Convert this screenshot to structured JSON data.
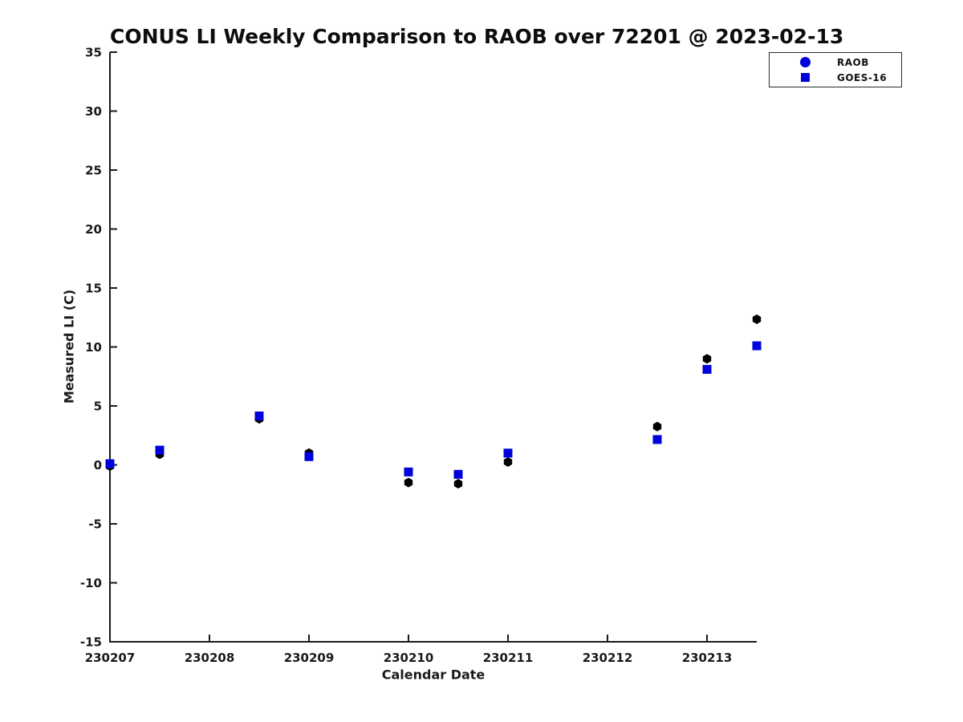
{
  "title": "CONUS LI Weekly Comparison to RAOB over 72201 @ 2023-02-13",
  "colors": {
    "raob_plot_marker": "#000000",
    "goes_plot_marker": "#0000dd",
    "legend_marker_blue": "#0000dd",
    "axis": "#1a1a1a"
  },
  "chart_data": {
    "type": "scatter",
    "title": "CONUS LI Weekly Comparison to RAOB over 72201 @ 2023-02-13",
    "xlabel": "Calendar Date",
    "ylabel": "Measured LI (C)",
    "xlim": [
      230207,
      230213.5
    ],
    "ylim": [
      -15,
      35
    ],
    "x_ticks": [
      230207,
      230208,
      230209,
      230210,
      230211,
      230212,
      230213
    ],
    "y_ticks": [
      -15,
      -10,
      -5,
      0,
      5,
      10,
      15,
      20,
      25,
      30,
      35
    ],
    "grid": false,
    "legend_position": "top-right",
    "series": [
      {
        "name": "RAOB",
        "marker": "hexagon",
        "color": "#000000",
        "legend_color": "#0000dd",
        "legend_marker": "circle",
        "x": [
          230207.0,
          230207.5,
          230208.5,
          230209.0,
          230210.0,
          230210.5,
          230211.0,
          230212.5,
          230213.0,
          230213.5
        ],
        "y": [
          -0.1,
          0.9,
          3.9,
          1.0,
          -1.5,
          -1.6,
          0.25,
          3.25,
          9.0,
          12.35
        ]
      },
      {
        "name": "GOES-16",
        "marker": "square",
        "color": "#0000dd",
        "legend_color": "#0000dd",
        "legend_marker": "square",
        "x": [
          230207.0,
          230207.5,
          230208.5,
          230209.0,
          230210.0,
          230210.5,
          230211.0,
          230212.5,
          230213.0,
          230213.5
        ],
        "y": [
          0.1,
          1.25,
          4.15,
          0.7,
          -0.6,
          -0.8,
          1.0,
          2.15,
          8.1,
          10.1
        ]
      }
    ]
  }
}
